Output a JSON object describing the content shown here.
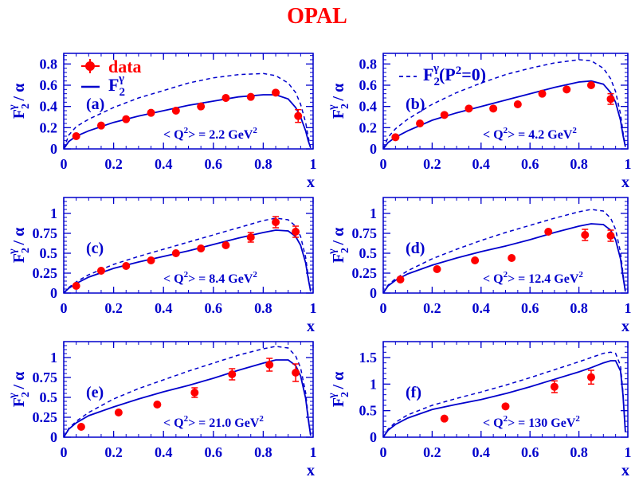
{
  "title": "OPAL",
  "colors": {
    "title": "#ff0000",
    "axes": "#0000cc",
    "data": "#ff0000",
    "model": "#0000cc"
  },
  "legend": {
    "data_label": "data",
    "solid_label_main": "F",
    "solid_label_sub": "2",
    "solid_label_sup": "γ",
    "dashed_label_main": "F",
    "dashed_label_sub": "2",
    "dashed_label_sup": "γ",
    "dashed_label_tail": "(P",
    "dashed_label_tail_sup": "2",
    "dashed_label_end": "=0)"
  },
  "ylabel_parts": {
    "main": "F",
    "sub": "2",
    "sup": "γ",
    "tail": " / α"
  },
  "chart_data": [
    {
      "type": "scatter",
      "panel": "(a)",
      "q2_label": "< Q",
      "q2_value": "> = 2.2 GeV",
      "xlabel": "x",
      "xlim": [
        0,
        1
      ],
      "ylim": [
        0,
        0.9
      ],
      "xticks": [
        "0",
        "0.2",
        "0.4",
        "0.6",
        "0.8",
        "1"
      ],
      "xtick_values": [
        0,
        0.2,
        0.4,
        0.6,
        0.8,
        1.0
      ],
      "yticks": [
        "0",
        "0.2",
        "0.4",
        "0.6",
        "0.8"
      ],
      "ytick_values": [
        0,
        0.2,
        0.4,
        0.6,
        0.8
      ],
      "series": [
        {
          "name": "data",
          "x": [
            0.05,
            0.15,
            0.25,
            0.35,
            0.45,
            0.55,
            0.65,
            0.75,
            0.85,
            0.94
          ],
          "y": [
            0.12,
            0.22,
            0.28,
            0.34,
            0.36,
            0.4,
            0.48,
            0.49,
            0.53,
            0.31
          ],
          "yerr": [
            0.01,
            0.01,
            0.01,
            0.01,
            0.01,
            0.01,
            0.01,
            0.02,
            0.03,
            0.06
          ]
        },
        {
          "name": "F2γ",
          "x": [
            0,
            0.02,
            0.05,
            0.1,
            0.2,
            0.3,
            0.4,
            0.5,
            0.6,
            0.7,
            0.8,
            0.85,
            0.9,
            0.93,
            0.95,
            0.97,
            0.98,
            0.99
          ],
          "y": [
            0,
            0.07,
            0.12,
            0.17,
            0.25,
            0.31,
            0.36,
            0.41,
            0.45,
            0.49,
            0.51,
            0.51,
            0.47,
            0.39,
            0.3,
            0.17,
            0.08,
            0.01
          ]
        },
        {
          "name": "F2γ(P2=0)",
          "x": [
            0,
            0.02,
            0.05,
            0.1,
            0.2,
            0.3,
            0.4,
            0.5,
            0.6,
            0.7,
            0.8,
            0.85,
            0.9,
            0.93,
            0.95,
            0.97,
            0.98,
            0.99
          ],
          "y": [
            0,
            0.13,
            0.21,
            0.28,
            0.39,
            0.48,
            0.55,
            0.62,
            0.67,
            0.7,
            0.71,
            0.69,
            0.62,
            0.53,
            0.42,
            0.25,
            0.12,
            0.01
          ]
        }
      ]
    },
    {
      "type": "scatter",
      "panel": "(b)",
      "q2_label": "< Q",
      "q2_value": "> = 4.2 GeV",
      "xlabel": "x",
      "xlim": [
        0,
        1
      ],
      "ylim": [
        0,
        0.9
      ],
      "xticks": [
        "0",
        "0.2",
        "0.4",
        "0.6",
        "0.8",
        "1"
      ],
      "xtick_values": [
        0,
        0.2,
        0.4,
        0.6,
        0.8,
        1.0
      ],
      "yticks": [
        "0",
        "0.2",
        "0.4",
        "0.6",
        "0.8"
      ],
      "ytick_values": [
        0,
        0.2,
        0.4,
        0.6,
        0.8
      ],
      "series": [
        {
          "name": "data",
          "x": [
            0.05,
            0.15,
            0.25,
            0.35,
            0.45,
            0.55,
            0.65,
            0.75,
            0.85,
            0.93
          ],
          "y": [
            0.11,
            0.24,
            0.32,
            0.38,
            0.38,
            0.42,
            0.52,
            0.56,
            0.6,
            0.47
          ],
          "yerr": [
            0.01,
            0.01,
            0.01,
            0.01,
            0.01,
            0.01,
            0.02,
            0.03,
            0.03,
            0.05
          ]
        },
        {
          "name": "F2γ",
          "x": [
            0,
            0.02,
            0.05,
            0.1,
            0.2,
            0.3,
            0.4,
            0.5,
            0.6,
            0.7,
            0.8,
            0.85,
            0.9,
            0.93,
            0.95,
            0.97,
            0.98,
            0.99
          ],
          "y": [
            0,
            0.06,
            0.11,
            0.17,
            0.27,
            0.34,
            0.4,
            0.46,
            0.52,
            0.58,
            0.63,
            0.64,
            0.61,
            0.53,
            0.44,
            0.27,
            0.13,
            0.02
          ]
        },
        {
          "name": "F2γ(P2=0)",
          "x": [
            0,
            0.02,
            0.05,
            0.1,
            0.2,
            0.3,
            0.4,
            0.5,
            0.6,
            0.7,
            0.8,
            0.85,
            0.9,
            0.93,
            0.95,
            0.97,
            0.98,
            0.99
          ],
          "y": [
            0,
            0.11,
            0.19,
            0.28,
            0.42,
            0.53,
            0.62,
            0.7,
            0.76,
            0.81,
            0.84,
            0.83,
            0.76,
            0.66,
            0.54,
            0.33,
            0.16,
            0.02
          ]
        }
      ]
    },
    {
      "type": "scatter",
      "panel": "(c)",
      "q2_label": "< Q",
      "q2_value": "> = 8.4 GeV",
      "xlabel": "x",
      "xlim": [
        0,
        1
      ],
      "ylim": [
        0,
        1.2
      ],
      "xticks": [
        "0",
        "0.2",
        "0.4",
        "0.6",
        "0.8",
        "1"
      ],
      "xtick_values": [
        0,
        0.2,
        0.4,
        0.6,
        0.8,
        1.0
      ],
      "yticks": [
        "0",
        "0.25",
        "0.5",
        "0.75",
        "1"
      ],
      "ytick_values": [
        0,
        0.25,
        0.5,
        0.75,
        1.0
      ],
      "series": [
        {
          "name": "data",
          "x": [
            0.05,
            0.15,
            0.25,
            0.35,
            0.45,
            0.55,
            0.65,
            0.75,
            0.85,
            0.93
          ],
          "y": [
            0.09,
            0.28,
            0.34,
            0.41,
            0.5,
            0.56,
            0.6,
            0.7,
            0.89,
            0.77
          ],
          "yerr": [
            0.01,
            0.02,
            0.02,
            0.02,
            0.02,
            0.03,
            0.05,
            0.06,
            0.07,
            0.07
          ]
        },
        {
          "name": "F2γ",
          "x": [
            0,
            0.02,
            0.05,
            0.1,
            0.2,
            0.3,
            0.4,
            0.5,
            0.6,
            0.7,
            0.8,
            0.85,
            0.9,
            0.93,
            0.95,
            0.97,
            0.98,
            0.99
          ],
          "y": [
            0,
            0.06,
            0.12,
            0.2,
            0.31,
            0.39,
            0.46,
            0.53,
            0.61,
            0.69,
            0.76,
            0.79,
            0.78,
            0.71,
            0.6,
            0.38,
            0.19,
            0.02
          ]
        },
        {
          "name": "F2γ(P2=0)",
          "x": [
            0,
            0.02,
            0.05,
            0.1,
            0.2,
            0.3,
            0.4,
            0.5,
            0.6,
            0.7,
            0.8,
            0.85,
            0.9,
            0.93,
            0.95,
            0.97,
            0.98,
            0.99
          ],
          "y": [
            0,
            0.07,
            0.14,
            0.23,
            0.36,
            0.46,
            0.55,
            0.64,
            0.73,
            0.82,
            0.91,
            0.94,
            0.92,
            0.84,
            0.71,
            0.45,
            0.22,
            0.02
          ]
        }
      ]
    },
    {
      "type": "scatter",
      "panel": "(d)",
      "q2_label": "< Q",
      "q2_value": "> = 12.4 GeV",
      "xlabel": "x",
      "xlim": [
        0,
        1
      ],
      "ylim": [
        0,
        1.2
      ],
      "xticks": [
        "0",
        "0.2",
        "0.4",
        "0.6",
        "0.8",
        "1"
      ],
      "xtick_values": [
        0,
        0.2,
        0.4,
        0.6,
        0.8,
        1.0
      ],
      "yticks": [
        "0",
        "0.25",
        "0.5",
        "0.75",
        "1"
      ],
      "ytick_values": [
        0,
        0.25,
        0.5,
        0.75,
        1.0
      ],
      "series": [
        {
          "name": "data",
          "x": [
            0.07,
            0.22,
            0.375,
            0.525,
            0.675,
            0.825,
            0.93
          ],
          "y": [
            0.17,
            0.3,
            0.41,
            0.44,
            0.77,
            0.73,
            0.72
          ],
          "yerr": [
            0.01,
            0.02,
            0.02,
            0.04,
            0.05,
            0.07,
            0.07
          ]
        },
        {
          "name": "F2γ",
          "x": [
            0,
            0.02,
            0.05,
            0.1,
            0.2,
            0.3,
            0.4,
            0.5,
            0.6,
            0.7,
            0.8,
            0.85,
            0.9,
            0.93,
            0.95,
            0.97,
            0.98,
            0.99
          ],
          "y": [
            0,
            0.09,
            0.16,
            0.24,
            0.35,
            0.44,
            0.52,
            0.59,
            0.67,
            0.76,
            0.84,
            0.87,
            0.86,
            0.79,
            0.67,
            0.43,
            0.21,
            0.02
          ]
        },
        {
          "name": "F2γ(P2=0)",
          "x": [
            0,
            0.02,
            0.05,
            0.1,
            0.2,
            0.3,
            0.4,
            0.5,
            0.6,
            0.7,
            0.8,
            0.85,
            0.9,
            0.93,
            0.95,
            0.97,
            0.98,
            0.99
          ],
          "y": [
            0,
            0.1,
            0.18,
            0.28,
            0.43,
            0.55,
            0.66,
            0.76,
            0.85,
            0.94,
            1.02,
            1.05,
            1.03,
            0.94,
            0.8,
            0.51,
            0.25,
            0.02
          ]
        }
      ]
    },
    {
      "type": "scatter",
      "panel": "(e)",
      "q2_label": "< Q",
      "q2_value": "> = 21.0 GeV",
      "xlabel": "x",
      "xlim": [
        0,
        1
      ],
      "ylim": [
        0,
        1.2
      ],
      "xticks": [
        "0",
        "0.2",
        "0.4",
        "0.6",
        "0.8",
        "1"
      ],
      "xtick_values": [
        0,
        0.2,
        0.4,
        0.6,
        0.8,
        1.0
      ],
      "yticks": [
        "0",
        "0.25",
        "0.5",
        "0.75",
        "1"
      ],
      "ytick_values": [
        0,
        0.25,
        0.5,
        0.75,
        1.0
      ],
      "series": [
        {
          "name": "data",
          "x": [
            0.07,
            0.22,
            0.375,
            0.525,
            0.675,
            0.825,
            0.93
          ],
          "y": [
            0.13,
            0.31,
            0.41,
            0.56,
            0.79,
            0.91,
            0.81
          ],
          "yerr": [
            0.01,
            0.02,
            0.05,
            0.06,
            0.07,
            0.08,
            0.11
          ]
        },
        {
          "name": "F2γ",
          "x": [
            0,
            0.02,
            0.05,
            0.1,
            0.2,
            0.3,
            0.4,
            0.5,
            0.6,
            0.7,
            0.8,
            0.85,
            0.9,
            0.93,
            0.95,
            0.97,
            0.98,
            0.99
          ],
          "y": [
            0,
            0.1,
            0.18,
            0.27,
            0.38,
            0.48,
            0.57,
            0.65,
            0.74,
            0.84,
            0.93,
            0.97,
            0.97,
            0.9,
            0.77,
            0.49,
            0.24,
            0.02
          ]
        },
        {
          "name": "F2γ(P2=0)",
          "x": [
            0,
            0.02,
            0.05,
            0.1,
            0.2,
            0.3,
            0.4,
            0.5,
            0.6,
            0.7,
            0.8,
            0.85,
            0.9,
            0.93,
            0.95,
            0.97,
            0.98,
            0.99
          ],
          "y": [
            0,
            0.11,
            0.2,
            0.31,
            0.48,
            0.61,
            0.72,
            0.83,
            0.93,
            1.03,
            1.11,
            1.14,
            1.12,
            1.02,
            0.87,
            0.56,
            0.27,
            0.02
          ]
        }
      ]
    },
    {
      "type": "scatter",
      "panel": "(f)",
      "q2_label": "< Q",
      "q2_value": "> = 130 GeV",
      "xlabel": "x",
      "xlim": [
        0,
        1
      ],
      "ylim": [
        0,
        1.8
      ],
      "xticks": [
        "0",
        "0.2",
        "0.4",
        "0.6",
        "0.8",
        "1"
      ],
      "xtick_values": [
        0,
        0.2,
        0.4,
        0.6,
        0.8,
        1.0
      ],
      "yticks": [
        "0",
        "0.5",
        "1",
        "1.5"
      ],
      "ytick_values": [
        0,
        0.5,
        1.0,
        1.5
      ],
      "series": [
        {
          "name": "data",
          "x": [
            0.25,
            0.5,
            0.7,
            0.85
          ],
          "y": [
            0.35,
            0.58,
            0.95,
            1.13
          ],
          "yerr": [
            0.07,
            0.07,
            0.11,
            0.13
          ]
        },
        {
          "name": "F2γ",
          "x": [
            0,
            0.02,
            0.05,
            0.1,
            0.2,
            0.3,
            0.4,
            0.5,
            0.6,
            0.7,
            0.8,
            0.85,
            0.9,
            0.93,
            0.95,
            0.97,
            0.98,
            0.99
          ],
          "y": [
            0,
            0.13,
            0.24,
            0.36,
            0.52,
            0.62,
            0.71,
            0.82,
            0.95,
            1.09,
            1.23,
            1.31,
            1.4,
            1.44,
            1.44,
            1.25,
            0.8,
            0.1
          ]
        },
        {
          "name": "F2γ(P2=0)",
          "x": [
            0,
            0.02,
            0.05,
            0.1,
            0.2,
            0.3,
            0.4,
            0.5,
            0.6,
            0.7,
            0.8,
            0.85,
            0.9,
            0.93,
            0.95,
            0.97,
            0.98,
            0.99
          ],
          "y": [
            0,
            0.15,
            0.28,
            0.42,
            0.6,
            0.73,
            0.85,
            0.98,
            1.12,
            1.27,
            1.42,
            1.5,
            1.58,
            1.6,
            1.58,
            1.35,
            0.85,
            0.1
          ]
        }
      ]
    }
  ]
}
